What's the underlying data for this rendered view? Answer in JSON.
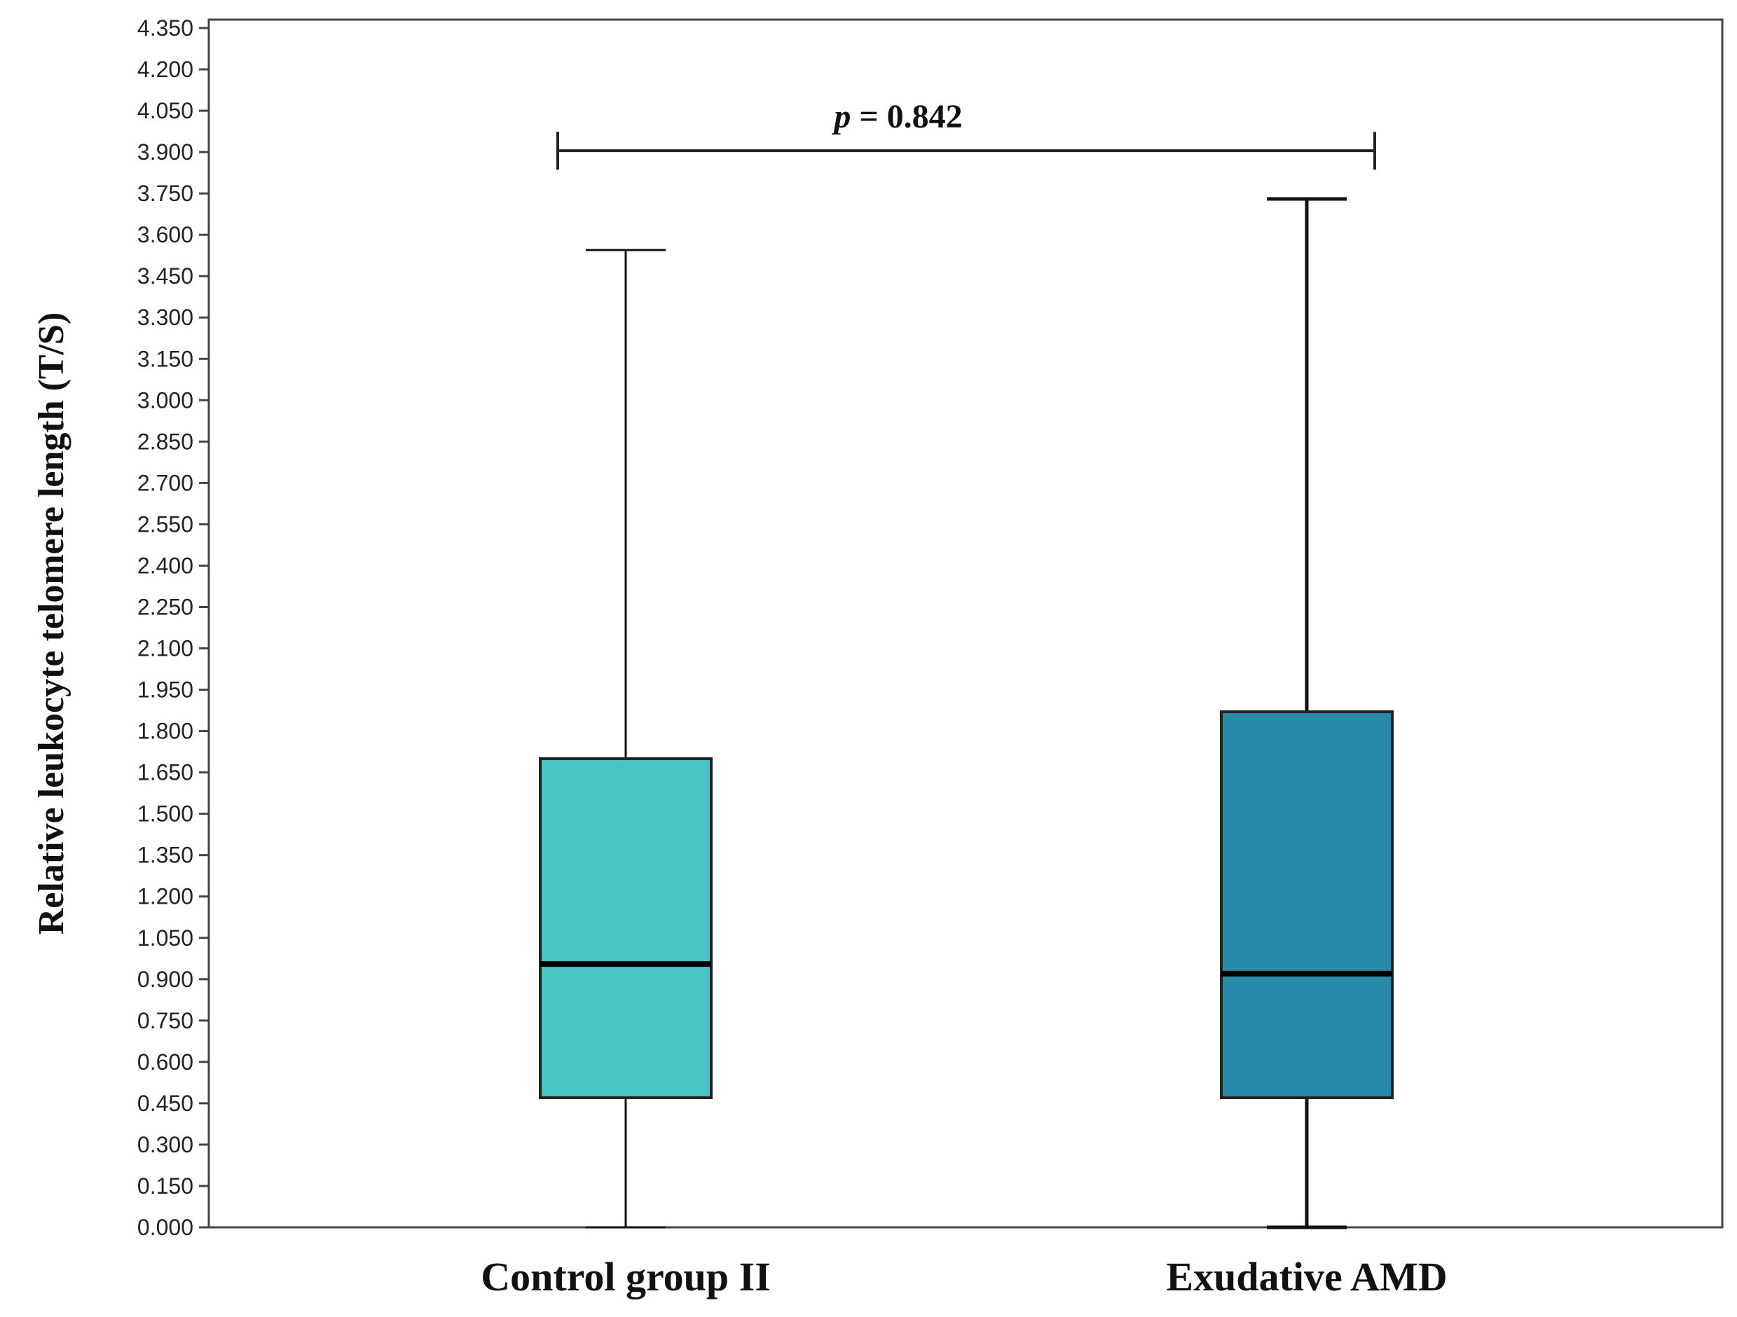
{
  "chart_data": {
    "type": "boxplot",
    "title": "",
    "xlabel": "",
    "ylabel": "Relative leukocyte telomere length (T/S)",
    "ylim": [
      0,
      4.35
    ],
    "yticks": [
      0.0,
      0.15,
      0.3,
      0.45,
      0.6,
      0.75,
      0.9,
      1.05,
      1.2,
      1.35,
      1.5,
      1.65,
      1.8,
      1.95,
      2.1,
      2.25,
      2.4,
      2.55,
      2.7,
      2.85,
      3.0,
      3.15,
      3.3,
      3.45,
      3.6,
      3.75,
      3.9,
      4.05,
      4.2,
      4.35
    ],
    "ytick_labels": [
      "0.000",
      "0.150",
      "0.300",
      "0.450",
      "0.600",
      "0.750",
      "0.900",
      "1.050",
      "1.200",
      "1.350",
      "1.500",
      "1.650",
      "1.800",
      "1.950",
      "2.100",
      "2.250",
      "2.400",
      "2.550",
      "2.700",
      "2.850",
      "3.000",
      "3.150",
      "3.300",
      "3.450",
      "3.600",
      "3.750",
      "3.900",
      "4.050",
      "4.200",
      "4.350"
    ],
    "categories": [
      "Control group II",
      "Exudative AMD"
    ],
    "boxes": [
      {
        "name": "Control group II",
        "min": 0.0,
        "q1": 0.47,
        "median": 0.955,
        "q3": 1.7,
        "max": 3.545,
        "color": "#4ac3c6"
      },
      {
        "name": "Exudative AMD",
        "min": 0.0,
        "q1": 0.47,
        "median": 0.92,
        "q3": 1.87,
        "max": 3.73,
        "color": "#268aa8"
      }
    ],
    "annotation": {
      "p_symbol": "p",
      "p_text": " = 0.842",
      "y_value": 3.905
    }
  }
}
